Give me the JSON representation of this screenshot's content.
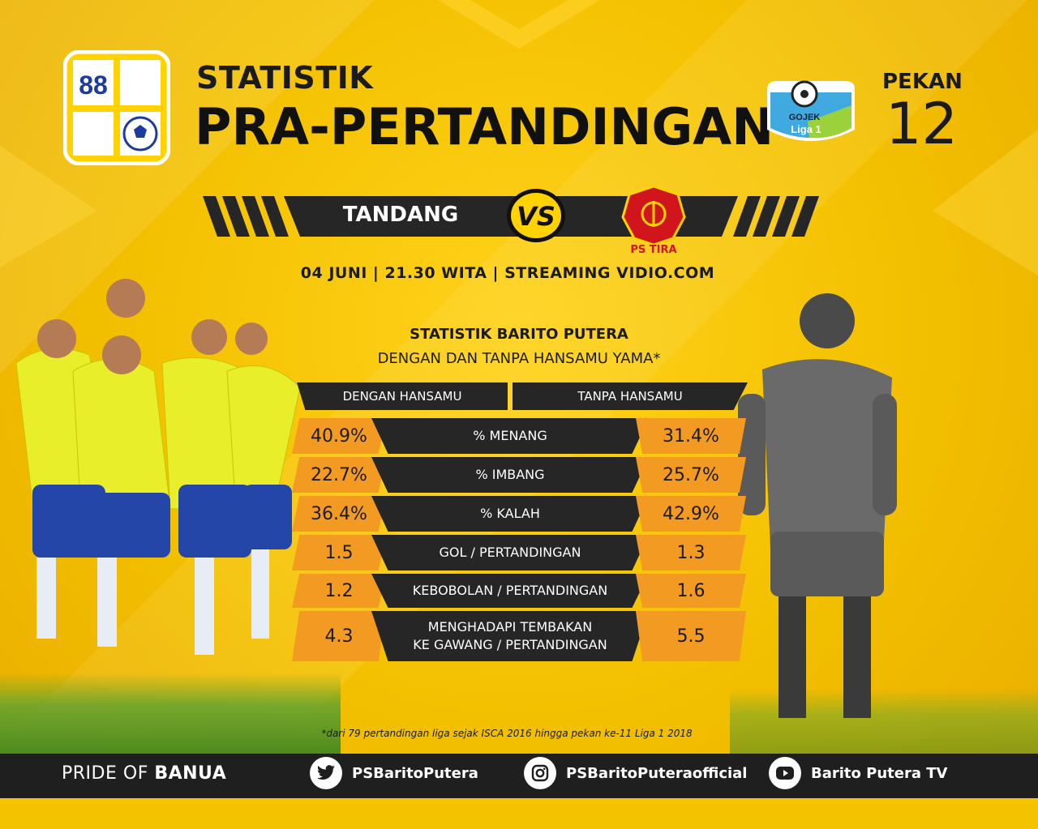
{
  "header": {
    "title_line1": "STATISTIK",
    "title_line2": "PRA-PERTANDINGAN",
    "club_logo_number": "88",
    "league_logo_top": "GOJEK",
    "league_logo_bottom": "Liga 1",
    "pekan_label": "PEKAN",
    "pekan_number": "12"
  },
  "match": {
    "venue_label": "TANDANG",
    "vs_label": "VS",
    "opponent_logo_text": "PS TIRA",
    "info": "04 JUNI | 21.30 WITA | STREAMING VIDIO.COM"
  },
  "stats": {
    "title": "STATISTIK BARITO PUTERA",
    "subtitle": "DENGAN DAN TANPA HANSAMU YAMA*",
    "col_left": "DENGAN HANSAMU",
    "col_right": "TANPA HANSAMU",
    "rows": [
      {
        "left": "40.9%",
        "label": "% MENANG",
        "right": "31.4%"
      },
      {
        "left": "22.7%",
        "label": "% IMBANG",
        "right": "25.7%"
      },
      {
        "left": "36.4%",
        "label": "% KALAH",
        "right": "42.9%"
      },
      {
        "left": "1.5",
        "label": "GOL / PERTANDINGAN",
        "right": "1.3"
      },
      {
        "left": "1.2",
        "label": "KEBOBOLAN / PERTANDINGAN",
        "right": "1.6"
      },
      {
        "left": "4.3",
        "label_line1": "MENGHADAPI TEMBAKAN",
        "label_line2": "KE GAWANG / PERTANDINGAN",
        "right": "5.5"
      }
    ],
    "footnote": "*dari 79 pertandingan liga sejak ISCA 2016 hingga pekan ke-11 Liga 1 2018"
  },
  "footer": {
    "pride_prefix": "PRIDE OF ",
    "pride_bold": "BANUA",
    "twitter": "PSBaritoPutera",
    "instagram": "PSBaritoPuteraofficial",
    "youtube": "Barito Putera TV"
  },
  "colors": {
    "background": "#f2c200",
    "dark_band": "#262626",
    "orange_value": "#f39a22",
    "footer": "#1f1f1f"
  }
}
